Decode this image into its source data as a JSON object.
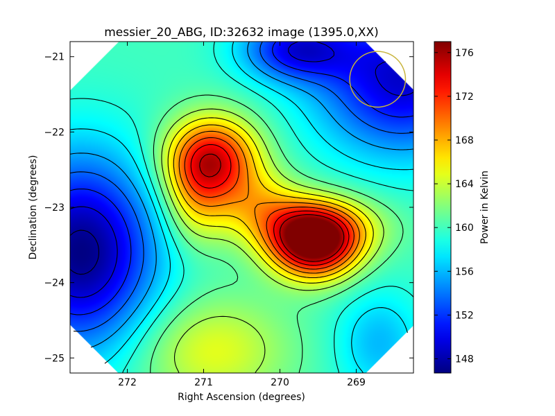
{
  "chart_data": {
    "type": "heatmap",
    "title": "messier_20_ABG, ID:32632 image (1395.0,XX)",
    "xlabel": "Right Ascension (degrees)",
    "ylabel": "Declination (degrees)",
    "colorbar_label": "Power in Kelvin",
    "colormap": "jet",
    "xlim": [
      272.75,
      268.25
    ],
    "ylim": [
      -25.2,
      -20.8
    ],
    "x_ticks": [
      272,
      271,
      270,
      269
    ],
    "x_tick_labels": [
      "272",
      "271",
      "270",
      "269"
    ],
    "y_ticks": [
      -21,
      -22,
      -23,
      -24,
      -25
    ],
    "y_tick_labels": [
      "−21",
      "−22",
      "−23",
      "−24",
      "−25"
    ],
    "clim": [
      146.7,
      177.0
    ],
    "colorbar_ticks": [
      148,
      152,
      156,
      160,
      164,
      168,
      172,
      176
    ],
    "colorbar_tick_labels": [
      "148",
      "152",
      "156",
      "160",
      "164",
      "168",
      "172",
      "176"
    ],
    "background_level": 160,
    "features": [
      {
        "ra": 270.88,
        "dec": -22.35,
        "peak": 173.5,
        "sigma_ra": 0.42,
        "sigma_dec": 0.38
      },
      {
        "ra": 269.55,
        "dec": -23.5,
        "peak": 176.5,
        "sigma_ra": 0.4,
        "sigma_dec": 0.32
      },
      {
        "ra": 269.6,
        "dec": -23.25,
        "peak": 168.0,
        "sigma_ra": 0.6,
        "sigma_dec": 0.28
      },
      {
        "ra": 270.3,
        "dec": -22.9,
        "peak": 164.5,
        "sigma_ra": 0.4,
        "sigma_dec": 0.3
      },
      {
        "ra": 271.1,
        "dec": -22.9,
        "peak": 165.5,
        "sigma_ra": 0.3,
        "sigma_dec": 0.45
      },
      {
        "ra": 270.9,
        "dec": -24.9,
        "peak": 165.0,
        "sigma_ra": 0.7,
        "sigma_dec": 0.5
      },
      {
        "ra": 272.6,
        "dec": -23.6,
        "peak": 146.8,
        "sigma_ra": 0.7,
        "sigma_dec": 0.9
      },
      {
        "ra": 268.4,
        "dec": -21.3,
        "peak": 149.0,
        "sigma_ra": 0.8,
        "sigma_dec": 0.7
      },
      {
        "ra": 269.8,
        "dec": -20.9,
        "peak": 151.0,
        "sigma_ra": 0.5,
        "sigma_dec": 0.3
      },
      {
        "ra": 268.7,
        "dec": -24.8,
        "peak": 156.0,
        "sigma_ra": 0.4,
        "sigma_dec": 0.5
      }
    ],
    "contour_levels": [
      147.5,
      149.5,
      151.5,
      153.5,
      155.5,
      157.5,
      159.0,
      161.0,
      163.0,
      165.0,
      167.0,
      169.0,
      171.0,
      173.0,
      175.0
    ],
    "beam_circle": {
      "ra": 268.72,
      "dec": -21.3,
      "radius_deg": 0.37,
      "color": "#c8b43c"
    }
  }
}
